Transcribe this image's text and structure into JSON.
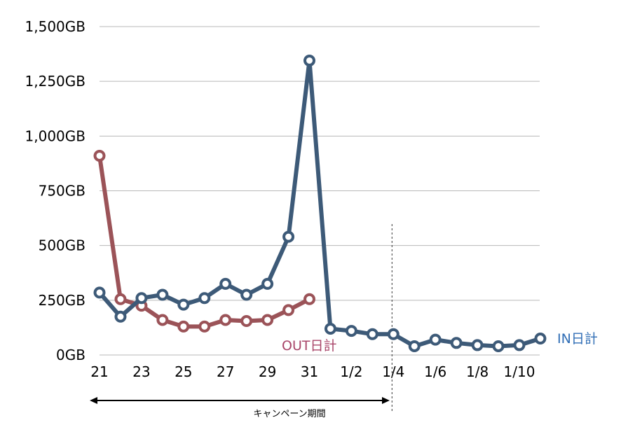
{
  "chart_data": {
    "type": "line",
    "title": "",
    "xlabel": "",
    "ylabel": "",
    "ylim": [
      0,
      1500
    ],
    "grid": true,
    "y_ticks": [
      "0GB",
      "250GB",
      "500GB",
      "750GB",
      "1,000GB",
      "1,250GB",
      "1,500GB"
    ],
    "x": [
      "21",
      "22",
      "23",
      "24",
      "25",
      "26",
      "27",
      "28",
      "29",
      "30",
      "31",
      "1/1",
      "1/2",
      "1/3",
      "1/4",
      "1/5",
      "1/6",
      "1/7",
      "1/8",
      "1/9",
      "1/10",
      "1/11"
    ],
    "x_tick_labels": [
      "21",
      "",
      "23",
      "",
      "25",
      "",
      "27",
      "",
      "29",
      "",
      "31",
      "",
      "1/2",
      "",
      "1/4",
      "",
      "1/6",
      "",
      "1/8",
      "",
      "1/10",
      ""
    ],
    "series": [
      {
        "name": "IN日計",
        "color": "#3d5a78",
        "values": [
          285,
          175,
          260,
          275,
          230,
          260,
          325,
          275,
          325,
          540,
          1345,
          120,
          110,
          95,
          95,
          40,
          70,
          55,
          45,
          40,
          45,
          75
        ]
      },
      {
        "name": "OUT日計",
        "color": "#9b5358",
        "values": [
          910,
          255,
          225,
          160,
          130,
          130,
          160,
          155,
          160,
          205,
          255,
          null,
          null,
          null,
          null,
          null,
          null,
          null,
          null,
          null,
          null,
          null
        ]
      }
    ],
    "annotations": {
      "campaign_label": "キャンペーン期間",
      "campaign_range": [
        "21",
        "1/4"
      ],
      "divider_at": "1/4"
    },
    "label_colors": {
      "in": "#2f6db5",
      "out": "#a84468"
    }
  }
}
